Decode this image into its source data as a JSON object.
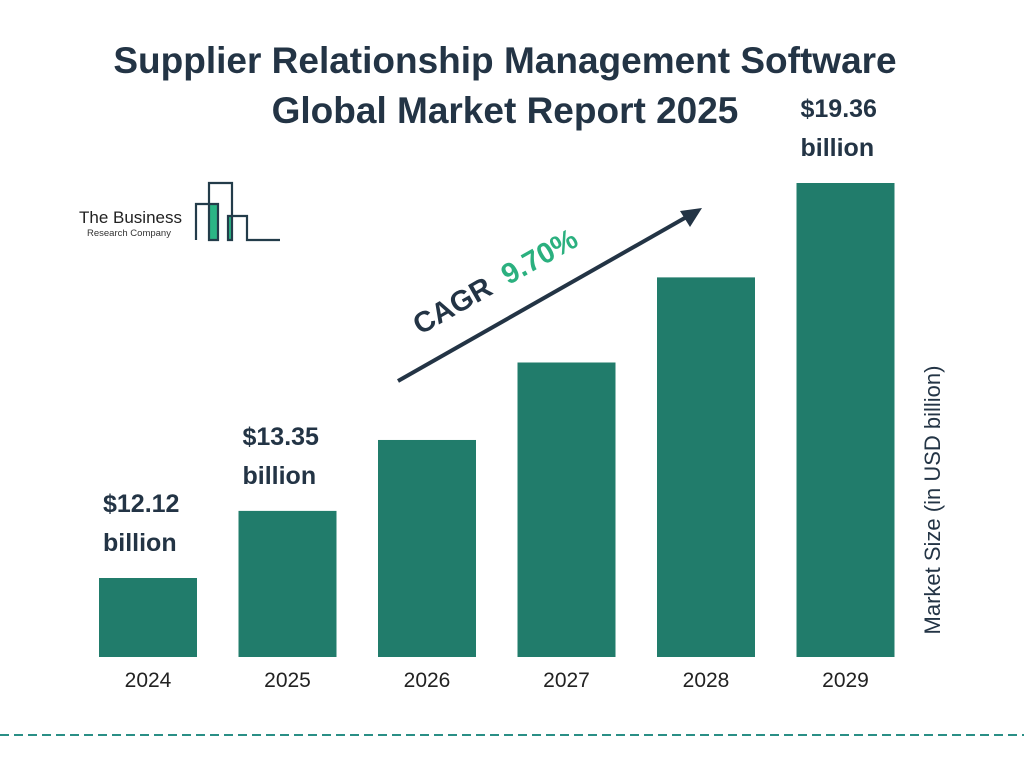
{
  "chart_data": {
    "type": "bar",
    "title": "Supplier Relationship Management Software Global Market Report 2025",
    "title_lines": [
      "Supplier Relationship Management Software",
      "Global Market Report 2025"
    ],
    "categories": [
      "2024",
      "2025",
      "2026",
      "2027",
      "2028",
      "2029"
    ],
    "values": [
      12.12,
      13.35,
      14.65,
      16.07,
      17.63,
      19.36
    ],
    "value_labels": [
      [
        "$12.12",
        "billion"
      ],
      [
        "$13.35",
        "billion"
      ],
      null,
      null,
      null,
      [
        "$19.36",
        "billion"
      ]
    ],
    "ylabel": "Market Size (in USD billion)",
    "xlabel": "",
    "grid": false,
    "annotation": {
      "prefix": "CAGR",
      "value": "9.70%"
    },
    "colors": {
      "bar": "#217c6b",
      "title": "#233445",
      "cagr": "#2bb07f",
      "dash": "#2a8f86"
    }
  },
  "logo": {
    "line1": "The Business",
    "line2": "Research Company"
  }
}
